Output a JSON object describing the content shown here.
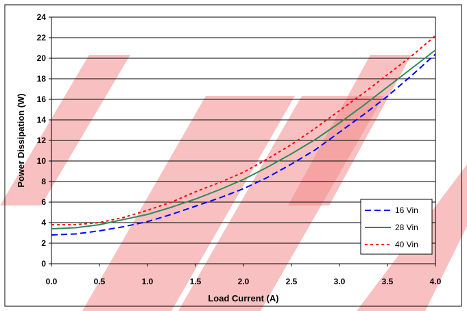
{
  "chart_data": {
    "type": "line",
    "xlabel": "Load Current (A)",
    "ylabel": "Power Dissipation (W)",
    "xlim": [
      0,
      4
    ],
    "ylim": [
      0,
      24
    ],
    "x_ticks": [
      "0.0",
      "0.5",
      "1.0",
      "1.5",
      "2.0",
      "2.5",
      "3.0",
      "3.5",
      "4.0"
    ],
    "y_ticks": [
      "0",
      "2",
      "4",
      "6",
      "8",
      "10",
      "12",
      "14",
      "16",
      "18",
      "20",
      "22",
      "24"
    ],
    "grid": "horizontal",
    "legend_position": "bottom-right",
    "series": [
      {
        "name": "16 Vin",
        "color": "#0000ff",
        "style": "dash",
        "x": [
          0.0,
          0.25,
          0.5,
          0.75,
          1.0,
          1.25,
          1.5,
          1.75,
          2.0,
          2.25,
          2.5,
          2.75,
          3.0,
          3.25,
          3.5,
          3.75,
          4.0
        ],
        "y": [
          2.8,
          2.9,
          3.2,
          3.6,
          4.1,
          4.8,
          5.6,
          6.4,
          7.3,
          8.4,
          9.7,
          11.1,
          12.8,
          14.5,
          16.3,
          18.3,
          20.4
        ]
      },
      {
        "name": "28 Vin",
        "color": "#2e8b57",
        "style": "solid",
        "x": [
          0.0,
          0.25,
          0.5,
          0.75,
          1.0,
          1.25,
          1.5,
          1.75,
          2.0,
          2.25,
          2.5,
          2.75,
          3.0,
          3.25,
          3.5,
          3.75,
          4.0
        ],
        "y": [
          3.4,
          3.5,
          3.8,
          4.3,
          4.8,
          5.5,
          6.3,
          7.2,
          8.2,
          9.4,
          10.7,
          12.1,
          13.7,
          15.4,
          17.2,
          19.0,
          20.8
        ]
      },
      {
        "name": "40 Vin",
        "color": "#ff0000",
        "style": "dot",
        "x": [
          0.0,
          0.25,
          0.5,
          0.75,
          1.0,
          1.25,
          1.5,
          1.75,
          2.0,
          2.25,
          2.5,
          2.75,
          3.0,
          3.25,
          3.5,
          3.75,
          4.0
        ],
        "y": [
          3.8,
          3.8,
          4.0,
          4.5,
          5.2,
          6.0,
          7.0,
          7.9,
          8.9,
          10.2,
          11.6,
          13.2,
          14.9,
          16.6,
          18.4,
          20.2,
          22.2
        ]
      }
    ]
  }
}
